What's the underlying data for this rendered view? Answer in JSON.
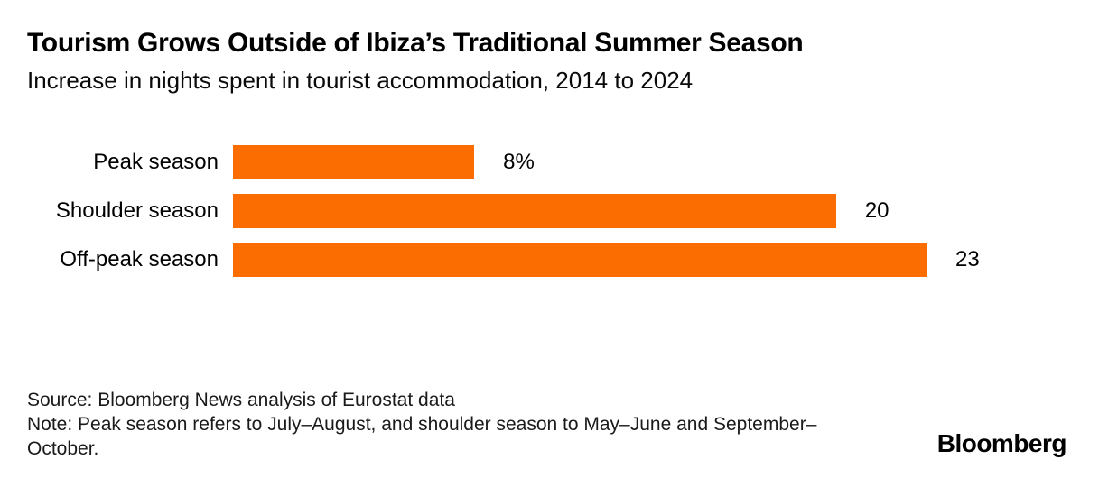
{
  "header": {
    "title": "Tourism Grows Outside of Ibiza’s Traditional Summer Season",
    "subtitle": "Increase in nights spent in tourist accommodation, 2014 to 2024"
  },
  "chart_data": {
    "type": "bar",
    "orientation": "horizontal",
    "title": "Tourism Grows Outside of Ibiza’s Traditional Summer Season",
    "subtitle": "Increase in nights spent in tourist accommodation, 2014 to 2024",
    "categories": [
      "Peak season",
      "Shoulder season",
      "Off-peak season"
    ],
    "values": [
      8,
      20,
      23
    ],
    "value_labels": [
      "8%",
      "20",
      "23"
    ],
    "unit": "percent",
    "xlim": [
      0,
      23
    ],
    "grid": false,
    "legend": false,
    "bar_color": "#FB6D00"
  },
  "footer": {
    "source": "Source: Bloomberg News analysis of Eurostat data",
    "note": "Note: Peak season refers to July–August, and shoulder season to May–June and September–October.",
    "brand": "Bloomberg"
  },
  "colors": {
    "accent": "#FB6D00",
    "background": "#FFFFFF",
    "text": "#000000"
  }
}
